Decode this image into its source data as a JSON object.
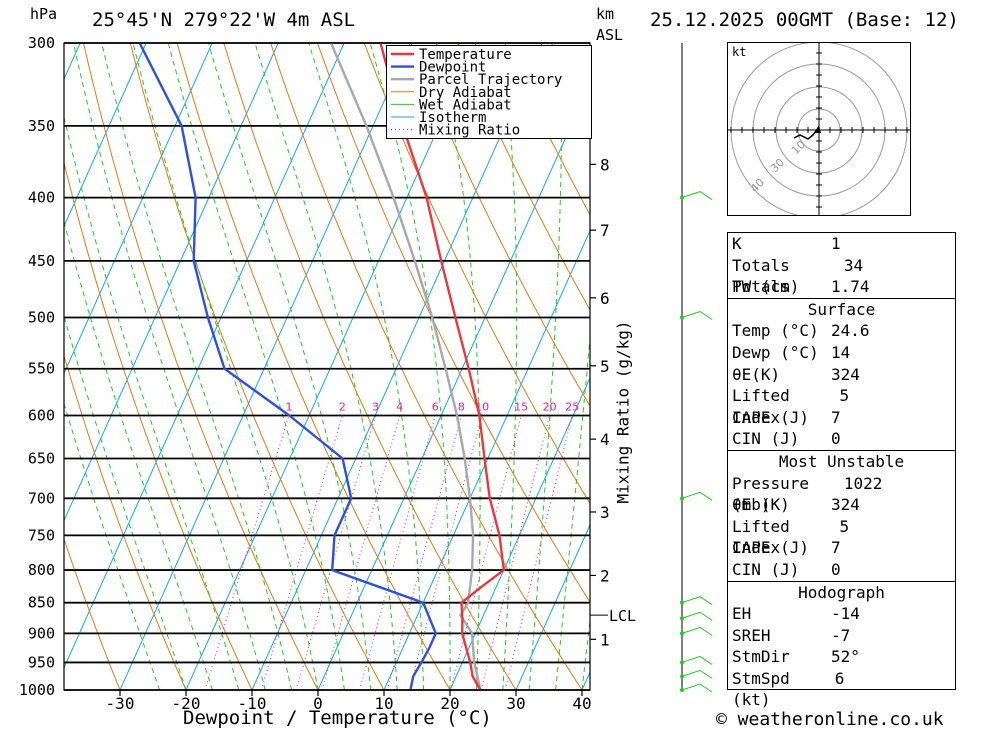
{
  "header": {
    "location": "25°45'N  279°22'W  4m  ASL",
    "pressure_unit": "hPa",
    "height_unit_line1": "km",
    "height_unit_line2": "ASL",
    "datetime": "25.12.2025  00GMT  (Base: 12)"
  },
  "footer": {
    "copyright": "© weatheronline.co.uk"
  },
  "chart_data": {
    "type": "line",
    "xlabel": "Dewpoint / Temperature (°C)",
    "ylabel": "",
    "mixing_ratio_label": "Mixing Ratio (g/kg)",
    "x_ticks": [
      -30,
      -20,
      -10,
      0,
      10,
      20,
      30,
      40
    ],
    "pressure_levels": [
      300,
      350,
      400,
      450,
      500,
      550,
      600,
      650,
      700,
      750,
      800,
      850,
      900,
      950,
      1000
    ],
    "mixing_ratio_values": [
      "1",
      "2",
      "3",
      "4",
      "6",
      "8",
      "10",
      "15",
      "20",
      "25"
    ],
    "km_ticks": [
      {
        "label": "8",
        "p": 376
      },
      {
        "label": "7",
        "p": 425
      },
      {
        "label": "6",
        "p": 482
      },
      {
        "label": "5",
        "p": 547
      },
      {
        "label": "4",
        "p": 627
      },
      {
        "label": "3",
        "p": 718
      },
      {
        "label": "2",
        "p": 808
      },
      {
        "label": "1",
        "p": 910
      }
    ],
    "lcl": {
      "label": "LCL",
      "p": 870
    },
    "legend": [
      "Temperature",
      "Dewpoint",
      "Parcel Trajectory",
      "Dry Adiabat",
      "Wet Adiabat",
      "Isotherm",
      "Mixing Ratio"
    ],
    "colors": {
      "temperature": "#e8383d",
      "dewpoint": "#2e4fe0",
      "parcel": "#a8a8a8",
      "dry": "#e07a10",
      "wet": "#1fcc1f",
      "iso": "#10a9e0",
      "mix": "#e020a0"
    },
    "series": [
      {
        "name": "Temperature",
        "points": [
          [
            1000,
            24.6
          ],
          [
            975,
            22.5
          ],
          [
            950,
            21.2
          ],
          [
            925,
            19.6
          ],
          [
            900,
            18.0
          ],
          [
            875,
            17.0
          ],
          [
            850,
            15.8
          ],
          [
            825,
            17.8
          ],
          [
            800,
            20.0
          ],
          [
            750,
            17.0
          ],
          [
            700,
            13.0
          ],
          [
            650,
            9.5
          ],
          [
            600,
            5.8
          ],
          [
            550,
            1.0
          ],
          [
            500,
            -4.5
          ],
          [
            450,
            -10.5
          ],
          [
            400,
            -17.0
          ],
          [
            350,
            -25.5
          ],
          [
            300,
            -34.5
          ]
        ]
      },
      {
        "name": "Dewpoint",
        "points": [
          [
            1000,
            14.0
          ],
          [
            975,
            13.5
          ],
          [
            950,
            13.8
          ],
          [
            925,
            14.0
          ],
          [
            900,
            14.0
          ],
          [
            850,
            10.0
          ],
          [
            800,
            -6.0
          ],
          [
            750,
            -8.0
          ],
          [
            700,
            -8.0
          ],
          [
            650,
            -12.0
          ],
          [
            600,
            -23.0
          ],
          [
            550,
            -36.0
          ],
          [
            500,
            -42.0
          ],
          [
            450,
            -48.0
          ],
          [
            400,
            -52.0
          ],
          [
            350,
            -59.0
          ],
          [
            300,
            -71.0
          ]
        ]
      },
      {
        "name": "Parcel Trajectory",
        "points": [
          [
            1000,
            24.6
          ],
          [
            950,
            21.8
          ],
          [
            900,
            19.5
          ],
          [
            870,
            16.5
          ],
          [
            850,
            16.8
          ],
          [
            800,
            15.2
          ],
          [
            750,
            13.0
          ],
          [
            700,
            10.0
          ],
          [
            650,
            6.5
          ],
          [
            600,
            2.4
          ],
          [
            550,
            -2.5
          ],
          [
            500,
            -8.0
          ],
          [
            450,
            -14.5
          ],
          [
            400,
            -22.0
          ],
          [
            350,
            -31.0
          ],
          [
            300,
            -42.0
          ]
        ]
      }
    ]
  },
  "hodograph": {
    "unit": "kt",
    "ring_labels": [
      "10",
      "30",
      "40"
    ]
  },
  "indices": {
    "k_label": "K",
    "k": "1",
    "tt_label": "Totals Totals",
    "tt": "34",
    "pw_label": "PW (cm)",
    "pw": "1.74"
  },
  "surface": {
    "title": "Surface",
    "temp_label": "Temp (°C)",
    "temp": "24.6",
    "dewp_label": "Dewp (°C)",
    "dewp": "14",
    "thetae_label": "θE(K)",
    "thetae": "324",
    "li_label": "Lifted Index",
    "li": "5",
    "cape_label": "CAPE (J)",
    "cape": "7",
    "cin_label": "CIN (J)",
    "cin": "0"
  },
  "most_unstable": {
    "title": "Most Unstable",
    "pres_label": "Pressure (mb)",
    "pres": "1022",
    "thetae_label": "θE (K)",
    "thetae": "324",
    "li_label": "Lifted Index",
    "li": "5",
    "cape_label": "CAPE (J)",
    "cape": "7",
    "cin_label": "CIN (J)",
    "cin": "0"
  },
  "hodo_params": {
    "title": "Hodograph",
    "eh_label": "EH",
    "eh": "-14",
    "sreh_label": "SREH",
    "sreh": "-7",
    "stmdir_label": "StmDir",
    "stmdir": "52°",
    "stmspd_label": "StmSpd (kt)",
    "stmspd": "6"
  }
}
